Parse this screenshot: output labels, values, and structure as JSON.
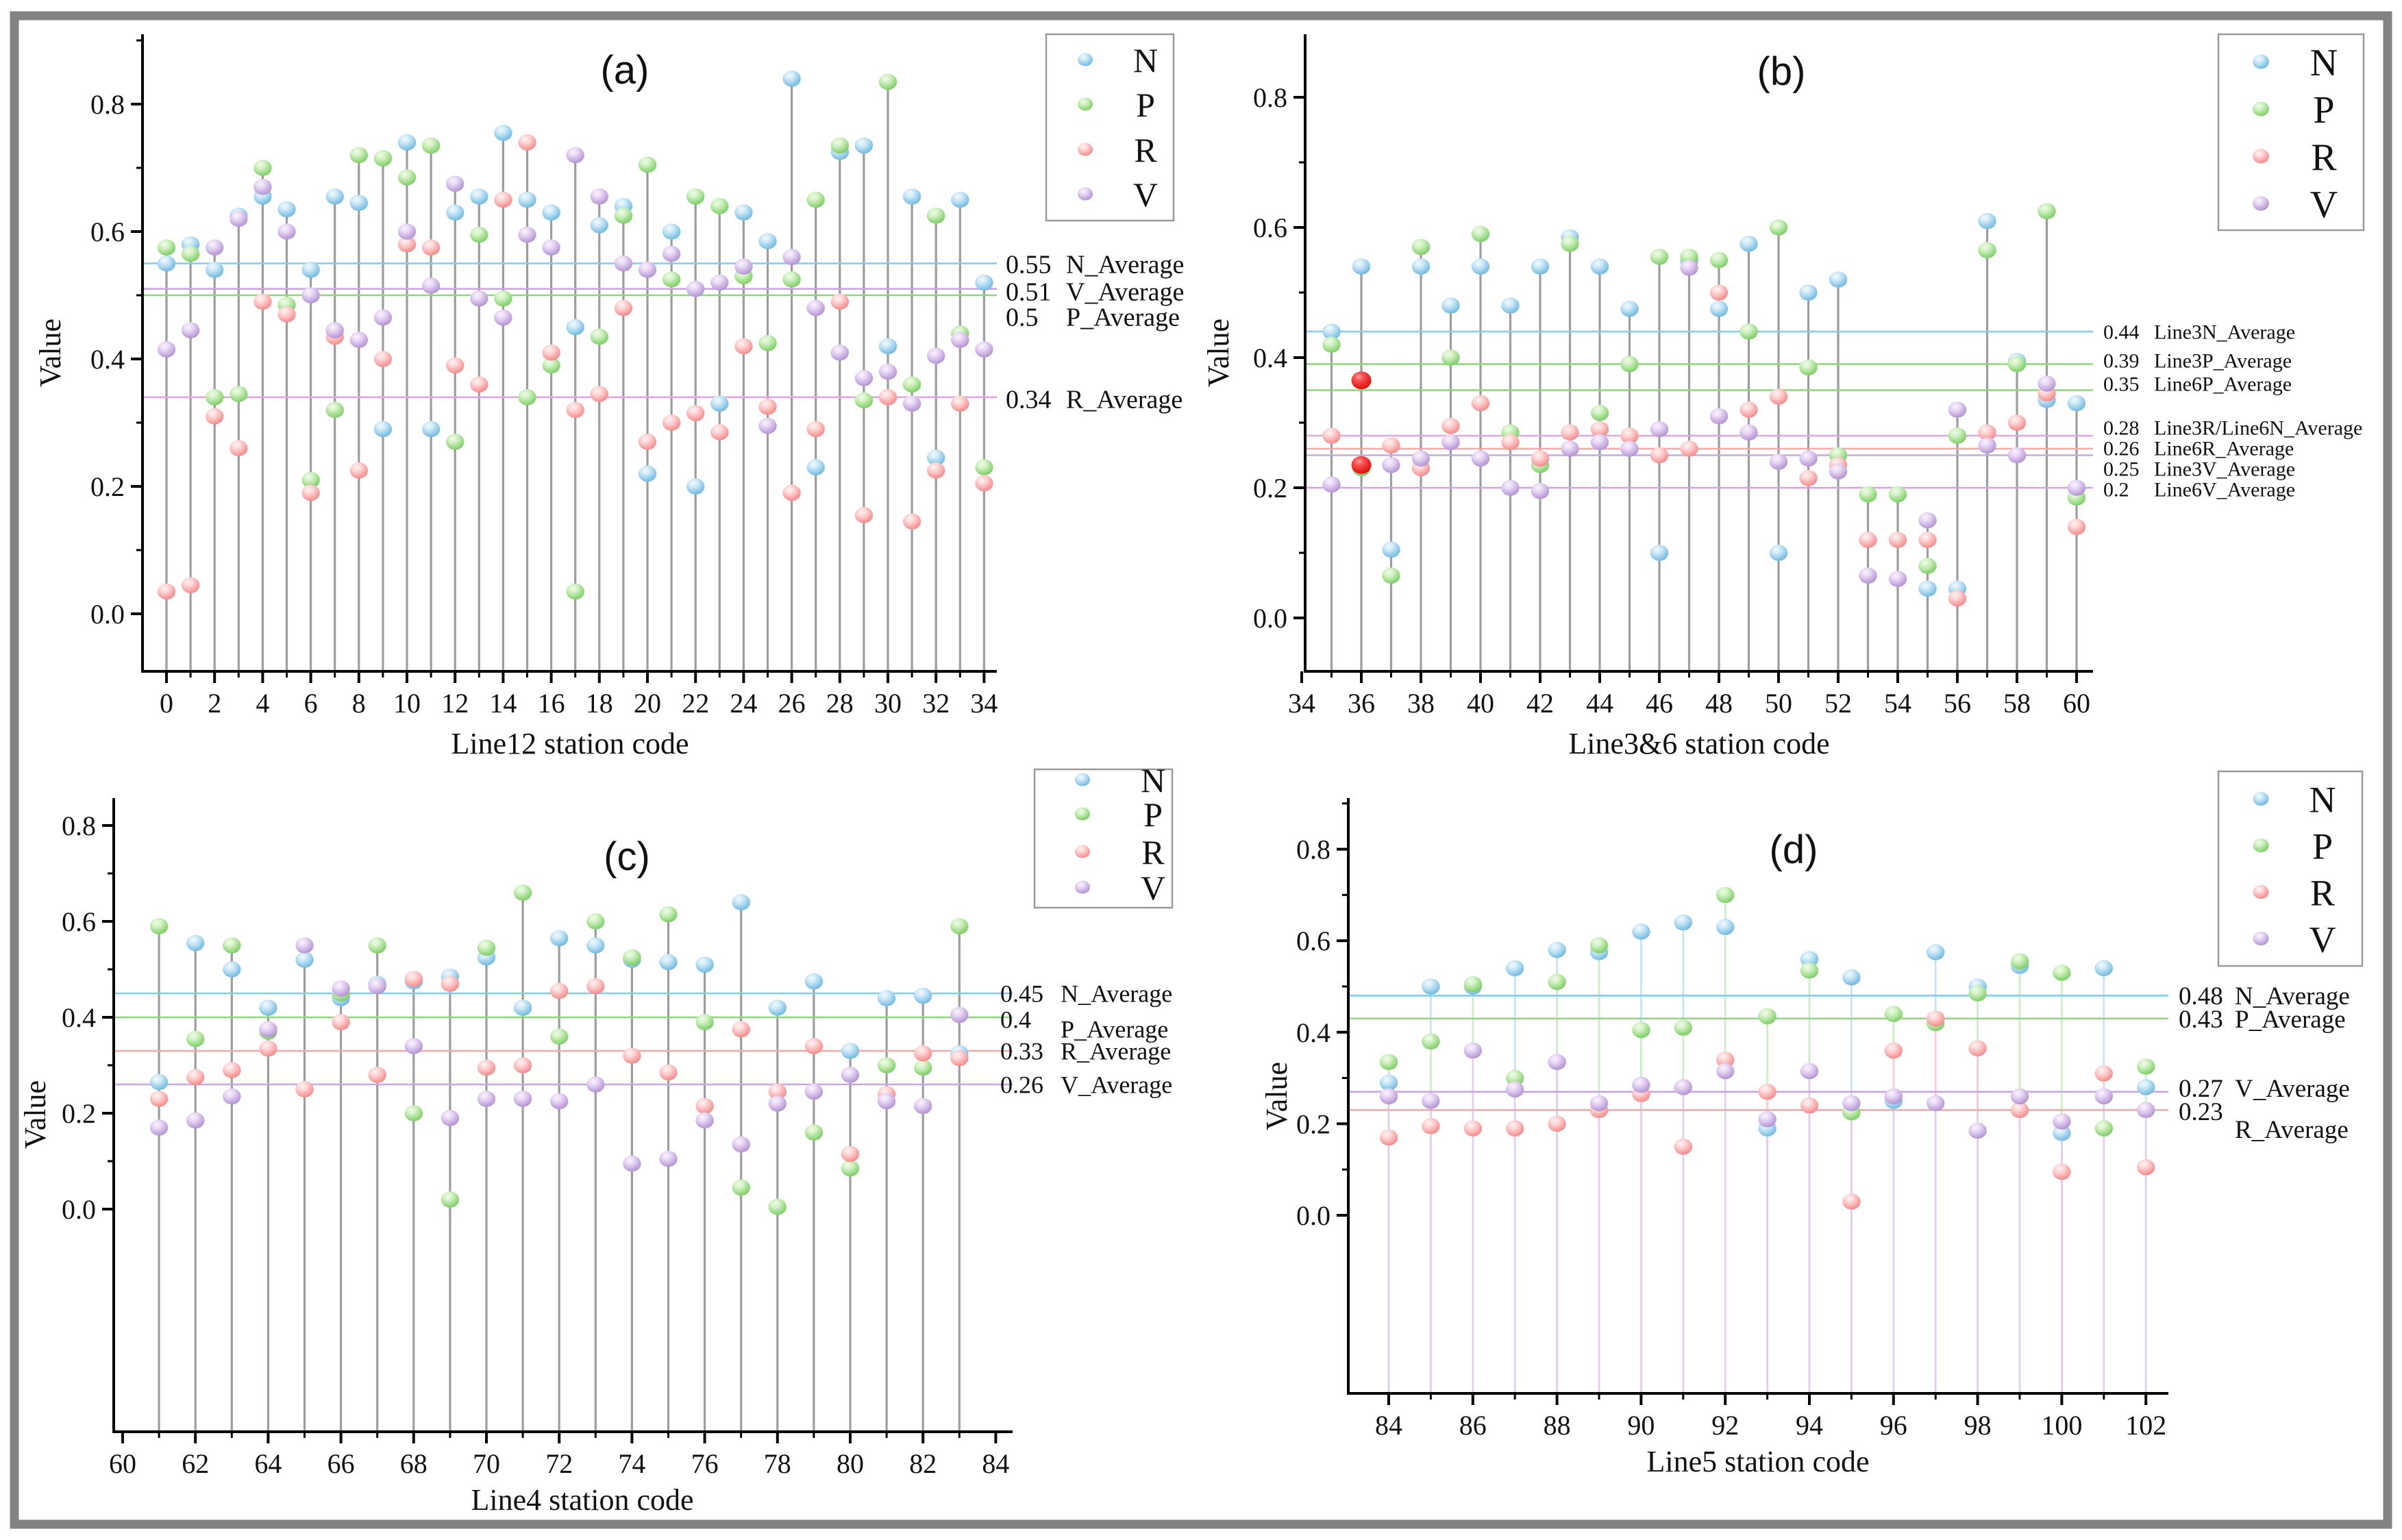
{
  "figure": {
    "frame_color": "#828282",
    "background": "#ffffff",
    "ylabel": "Value",
    "series_keys": [
      "N",
      "P",
      "R",
      "V"
    ],
    "highlight_color_name": "bright-red",
    "colors": {
      "N": {
        "base": "#5fb0dc",
        "mid": "#85c6e9",
        "light": "#cfeaf8",
        "stem": "#c3e2f4",
        "avg": "#85cbee"
      },
      "P": {
        "base": "#6cc753",
        "mid": "#8fd877",
        "light": "#d4f2c6",
        "stem": "#cdeec2",
        "avg": "#8fd77c"
      },
      "R": {
        "base": "#f47c7c",
        "mid": "#f99b9b",
        "light": "#fed7d7",
        "stem": "#fbccd6",
        "avg": "#f6a7a7"
      },
      "V": {
        "base": "#a986cc",
        "mid": "#c3a3dd",
        "light": "#ead9f6",
        "stem": "#e0cfef",
        "avg": "#c9a8e2"
      },
      "HL": {
        "base": "#dd0000",
        "mid": "#f85050",
        "light": "#ff9a9a"
      },
      "gray_stem": "#9d9d9d",
      "plum_avg": "#dcaade",
      "violet_avg": "#d5a3e1"
    }
  },
  "legend": {
    "entries": [
      "N",
      "P",
      "R",
      "V"
    ]
  },
  "chart_data": [
    {
      "id": "a",
      "type": "stem-scatter",
      "title": "(a)",
      "xlabel": "Line12 station code",
      "ylabel": "Value",
      "x_ticks": [
        0,
        2,
        4,
        6,
        8,
        10,
        12,
        14,
        16,
        18,
        20,
        22,
        24,
        26,
        28,
        30,
        32,
        34
      ],
      "y_ticks": [
        "0.0",
        "0.2",
        "0.4",
        "0.6",
        "0.8"
      ],
      "xlim": [
        -1,
        35.3
      ],
      "ylim": [
        -0.09,
        0.9
      ],
      "stem_mode": "gray",
      "avg_lines": [
        {
          "value": 0.55,
          "num": "0.55",
          "name": "N_Average",
          "color": "#85cbee"
        },
        {
          "value": 0.51,
          "num": "0.51",
          "name": "V_Average",
          "color": "#c9a8e2"
        },
        {
          "value": 0.5,
          "num": "0.5",
          "name": "P_Average",
          "color": "#8fd77c"
        },
        {
          "value": 0.34,
          "num": "0.34",
          "name": "R_Average",
          "color": "#dcaade"
        }
      ],
      "stations": [
        [
          0,
          0.55,
          0.575,
          0.035,
          0.415
        ],
        [
          1,
          0.58,
          0.565,
          0.045,
          0.445
        ],
        [
          2,
          0.54,
          0.34,
          0.31,
          0.575
        ],
        [
          3,
          0.625,
          0.345,
          0.26,
          0.62
        ],
        [
          4,
          0.655,
          0.7,
          0.49,
          0.67
        ],
        [
          5,
          0.635,
          0.485,
          0.47,
          0.6
        ],
        [
          6,
          0.54,
          0.21,
          0.19,
          0.5
        ],
        [
          7,
          0.655,
          0.32,
          0.435,
          0.445
        ],
        [
          8,
          0.645,
          0.72,
          0.225,
          0.43
        ],
        [
          9,
          0.29,
          0.715,
          0.4,
          0.465
        ],
        [
          10,
          0.74,
          0.685,
          0.58,
          0.6
        ],
        [
          11,
          0.29,
          0.735,
          0.575,
          0.515
        ],
        [
          12,
          0.63,
          0.27,
          0.39,
          0.675
        ],
        [
          13,
          0.655,
          0.595,
          0.36,
          0.495
        ],
        [
          14,
          0.755,
          0.495,
          0.65,
          0.465
        ],
        [
          15,
          0.65,
          0.34,
          0.74,
          0.595
        ],
        [
          16,
          0.63,
          0.39,
          0.41,
          0.575
        ],
        [
          17,
          0.45,
          0.035,
          0.32,
          0.72
        ],
        [
          18,
          0.61,
          0.435,
          0.345,
          0.655
        ],
        [
          19,
          0.64,
          0.625,
          0.48,
          0.55
        ],
        [
          20,
          0.22,
          0.705,
          0.27,
          0.54
        ],
        [
          21,
          0.6,
          0.525,
          0.3,
          0.565
        ],
        [
          22,
          0.2,
          0.655,
          0.315,
          0.51
        ],
        [
          23,
          0.33,
          0.64,
          0.285,
          0.52
        ],
        [
          24,
          0.63,
          0.53,
          0.42,
          0.545
        ],
        [
          25,
          0.585,
          0.425,
          0.325,
          0.295
        ],
        [
          26,
          0.84,
          0.525,
          0.19,
          0.56
        ],
        [
          27,
          0.23,
          0.65,
          0.29,
          0.48
        ],
        [
          28,
          0.725,
          0.735,
          0.49,
          0.41
        ],
        [
          29,
          0.735,
          0.335,
          0.155,
          0.37
        ],
        [
          30,
          0.42,
          0.835,
          0.34,
          0.38
        ],
        [
          31,
          0.655,
          0.36,
          0.145,
          0.33
        ],
        [
          32,
          0.245,
          0.625,
          0.225,
          0.405
        ],
        [
          33,
          0.65,
          0.44,
          0.33,
          0.43
        ],
        [
          34,
          0.52,
          0.23,
          0.205,
          0.415
        ]
      ]
    },
    {
      "id": "b",
      "type": "stem-scatter",
      "title": "(b)",
      "xlabel": "Line3&6 station code",
      "ylabel": "Value",
      "x_ticks": [
        34,
        36,
        38,
        40,
        42,
        44,
        46,
        48,
        50,
        52,
        54,
        56,
        58,
        60
      ],
      "y_ticks": [
        "0.0",
        "0.2",
        "0.4",
        "0.6",
        "0.8"
      ],
      "xlim": [
        33.3,
        61.2
      ],
      "ylim": [
        -0.08,
        0.92
      ],
      "stem_mode": "gray",
      "highlights": {
        "36": [
          "R",
          "V"
        ]
      },
      "avg_lines": [
        {
          "value": 0.44,
          "num": "0.44",
          "name": "Line3N_Average",
          "color": "#85cbee"
        },
        {
          "value": 0.39,
          "num": "0.39",
          "name": "Line3P_Average",
          "color": "#8fd77c"
        },
        {
          "value": 0.35,
          "num": "0.35",
          "name": "Line6P_Average",
          "color": "#8fd77c"
        },
        {
          "value": 0.28,
          "num": "0.28",
          "name": "Line3R/Line6N_Average",
          "color": "#dcaade"
        },
        {
          "value": 0.26,
          "num": "0.26",
          "name": "Line6R_Average",
          "color": "#f6a7a7"
        },
        {
          "value": 0.25,
          "num": "0.25",
          "name": "Line3V_Average",
          "color": "#c9a8e2"
        },
        {
          "value": 0.2,
          "num": "0.2",
          "name": "Line6V_Average",
          "color": "#d5a3e1"
        }
      ],
      "stations": [
        [
          35,
          0.44,
          0.42,
          0.28,
          0.205
        ],
        [
          36,
          0.54,
          0.23,
          0.365,
          0.235
        ],
        [
          37,
          0.105,
          0.065,
          0.265,
          0.235
        ],
        [
          38,
          0.54,
          0.57,
          0.23,
          0.245
        ],
        [
          39,
          0.48,
          0.4,
          0.295,
          0.27
        ],
        [
          40,
          0.54,
          0.59,
          0.33,
          0.245
        ],
        [
          41,
          0.48,
          0.285,
          0.27,
          0.2
        ],
        [
          42,
          0.54,
          0.235,
          0.245,
          0.195
        ],
        [
          43,
          0.585,
          0.575,
          0.285,
          0.26
        ],
        [
          44,
          0.54,
          0.315,
          0.29,
          0.27
        ],
        [
          45,
          0.475,
          0.39,
          0.28,
          0.26
        ],
        [
          46,
          0.1,
          0.555,
          0.25,
          0.29
        ],
        [
          47,
          0.548,
          0.555,
          0.26,
          0.538
        ],
        [
          48,
          0.475,
          0.55,
          0.5,
          0.31
        ],
        [
          49,
          0.575,
          0.44,
          0.32,
          0.285
        ],
        [
          50,
          0.1,
          0.6,
          0.34,
          0.24
        ],
        [
          51,
          0.5,
          0.385,
          0.215,
          0.245
        ],
        [
          52,
          0.52,
          0.25,
          0.235,
          0.225
        ],
        [
          53,
          null,
          0.19,
          0.12,
          0.065
        ],
        [
          54,
          null,
          0.19,
          0.12,
          0.06
        ],
        [
          55,
          0.045,
          0.08,
          0.12,
          0.15
        ],
        [
          56,
          0.045,
          0.28,
          0.03,
          0.32
        ],
        [
          57,
          0.61,
          0.565,
          0.285,
          0.265
        ],
        [
          58,
          0.395,
          0.39,
          0.3,
          0.25
        ],
        [
          59,
          0.335,
          0.625,
          0.345,
          0.36
        ],
        [
          60,
          0.33,
          0.185,
          0.14,
          0.2
        ]
      ]
    },
    {
      "id": "c",
      "type": "stem-scatter",
      "title": "(c)",
      "xlabel": "Line4 station code",
      "ylabel": "Value",
      "x_ticks": [
        60,
        62,
        64,
        66,
        68,
        70,
        72,
        74,
        76,
        78,
        80,
        82,
        84
      ],
      "y_ticks": [
        "0.0",
        "0.2",
        "0.4",
        "0.6",
        "0.8"
      ],
      "xlim": [
        59.7,
        84.5
      ],
      "ylim": [
        -0.46,
        0.86
      ],
      "stem_mode": "gray",
      "avg_lines": [
        {
          "value": 0.45,
          "num": "0.45",
          "name": "N_Average",
          "color": "#85cbee"
        },
        {
          "value": 0.4,
          "num": "0.4",
          "name": "P_Average",
          "color": "#8fd77c"
        },
        {
          "value": 0.33,
          "num": "0.33",
          "name": "R_Average",
          "color": "#f6a7a7"
        },
        {
          "value": 0.26,
          "num": "0.26",
          "name": "V_Average",
          "color": "#c9a8e2"
        }
      ],
      "stations": [
        [
          61,
          0.265,
          0.59,
          0.23,
          0.17
        ],
        [
          62,
          0.555,
          0.355,
          0.275,
          0.185
        ],
        [
          63,
          0.5,
          0.55,
          0.29,
          0.235
        ],
        [
          64,
          0.42,
          0.37,
          0.335,
          0.375
        ],
        [
          65,
          0.52,
          0.25,
          0.25,
          0.55
        ],
        [
          66,
          0.44,
          0.45,
          0.39,
          0.46
        ],
        [
          67,
          0.47,
          0.55,
          0.28,
          0.465
        ],
        [
          68,
          0.475,
          0.2,
          0.48,
          0.34
        ],
        [
          69,
          0.485,
          0.02,
          0.47,
          0.19
        ],
        [
          70,
          0.525,
          0.545,
          0.295,
          0.23
        ],
        [
          71,
          0.42,
          0.66,
          0.3,
          0.23
        ],
        [
          72,
          0.565,
          0.36,
          0.455,
          0.225
        ],
        [
          73,
          0.55,
          0.6,
          0.465,
          0.26
        ],
        [
          74,
          0.52,
          0.525,
          0.32,
          0.095
        ],
        [
          75,
          0.515,
          0.615,
          0.285,
          0.105
        ],
        [
          76,
          0.51,
          0.39,
          0.215,
          0.185
        ],
        [
          77,
          0.64,
          0.045,
          0.375,
          0.135
        ],
        [
          78,
          0.42,
          0.005,
          0.245,
          0.22
        ],
        [
          79,
          0.475,
          0.16,
          0.34,
          0.245
        ],
        [
          80,
          0.33,
          0.085,
          0.115,
          0.28
        ],
        [
          81,
          0.44,
          0.3,
          0.24,
          0.225
        ],
        [
          82,
          0.445,
          0.295,
          0.325,
          0.215
        ],
        [
          83,
          0.325,
          0.59,
          0.315,
          0.405
        ]
      ]
    },
    {
      "id": "d",
      "type": "stem-scatter",
      "title": "(d)",
      "xlabel": "Line5 station code",
      "ylabel": "Value",
      "x_ticks": [
        84,
        86,
        88,
        90,
        92,
        94,
        96,
        98,
        100,
        102
      ],
      "y_ticks": [
        "0.0",
        "0.2",
        "0.4",
        "0.6",
        "0.8"
      ],
      "xlim": [
        83.0,
        103.2
      ],
      "ylim": [
        -0.39,
        0.91
      ],
      "stem_mode": "series",
      "avg_lines": [
        {
          "value": 0.48,
          "num": "0.48",
          "name": "N_Average",
          "color": "#85cbee"
        },
        {
          "value": 0.43,
          "num": "0.43",
          "name": "P_Average",
          "color": "#8fd77c"
        },
        {
          "value": 0.27,
          "num": "0.27",
          "name": "V_Average",
          "color": "#c9a8e2"
        },
        {
          "value": 0.23,
          "num": "0.23",
          "name": "R_Average",
          "color": "#f6a7a7"
        }
      ],
      "stations": [
        [
          84,
          0.29,
          0.335,
          0.17,
          0.26
        ],
        [
          85,
          0.5,
          0.38,
          0.195,
          0.25
        ],
        [
          86,
          0.5,
          0.505,
          0.19,
          0.36
        ],
        [
          87,
          0.54,
          0.3,
          0.19,
          0.275
        ],
        [
          88,
          0.58,
          0.51,
          0.2,
          0.335
        ],
        [
          89,
          0.575,
          0.59,
          0.23,
          0.245
        ],
        [
          90,
          0.62,
          0.405,
          0.265,
          0.285
        ],
        [
          91,
          0.64,
          0.41,
          0.15,
          0.28
        ],
        [
          92,
          0.63,
          0.7,
          0.34,
          0.315
        ],
        [
          93,
          0.19,
          0.435,
          0.27,
          0.21
        ],
        [
          94,
          0.56,
          0.535,
          0.24,
          0.315
        ],
        [
          95,
          0.52,
          0.225,
          0.03,
          0.245
        ],
        [
          96,
          0.25,
          0.44,
          0.36,
          0.26
        ],
        [
          97,
          0.575,
          0.42,
          0.43,
          0.245
        ],
        [
          98,
          0.5,
          0.485,
          0.365,
          0.185
        ],
        [
          99,
          0.545,
          0.555,
          0.23,
          0.26
        ],
        [
          100,
          0.18,
          0.53,
          0.095,
          0.205
        ],
        [
          101,
          0.54,
          0.19,
          0.31,
          0.26
        ],
        [
          102,
          0.28,
          0.325,
          0.105,
          0.23
        ]
      ]
    }
  ]
}
